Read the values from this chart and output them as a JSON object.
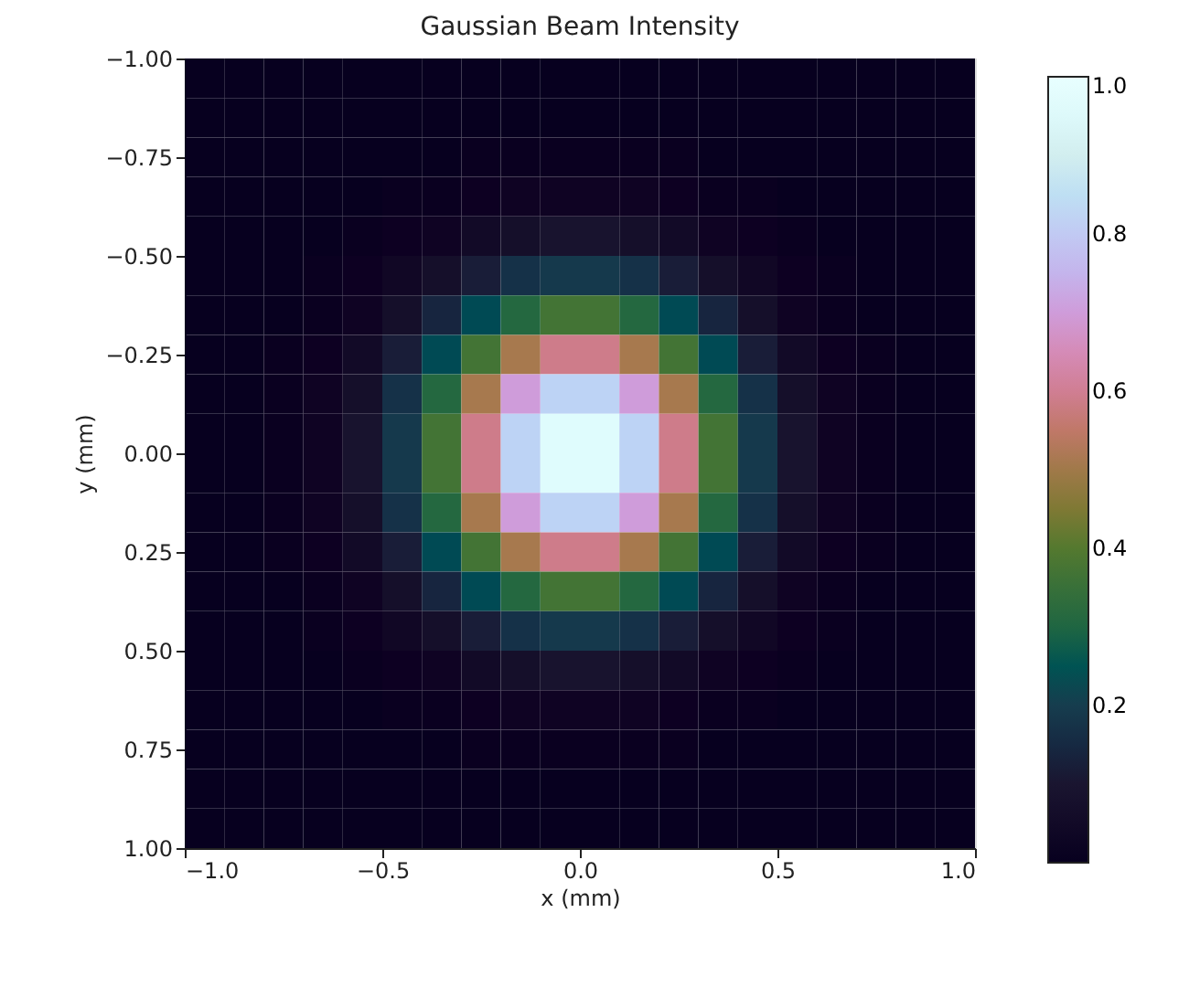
{
  "chart_data": {
    "type": "heatmap",
    "title": "Gaussian Beam Intensity",
    "xlabel": "x (mm)",
    "ylabel": "y (mm)",
    "x": [
      -0.95,
      -0.85,
      -0.75,
      -0.65,
      -0.55,
      -0.45,
      -0.35,
      -0.25,
      -0.15,
      -0.05,
      0.05,
      0.15,
      0.25,
      0.35,
      0.45,
      0.55,
      0.65,
      0.75,
      0.85,
      0.95
    ],
    "y": [
      -0.95,
      -0.85,
      -0.75,
      -0.65,
      -0.55,
      -0.45,
      -0.35,
      -0.25,
      -0.15,
      -0.05,
      0.05,
      0.15,
      0.25,
      0.35,
      0.45,
      0.55,
      0.65,
      0.75,
      0.85,
      0.95
    ],
    "xlim": [
      -1,
      1
    ],
    "ylim": [
      1,
      -1
    ],
    "xticks": [
      {
        "value": -1,
        "label": "−1.0"
      },
      {
        "value": -0.5,
        "label": "−0.5"
      },
      {
        "value": 0,
        "label": "0.0"
      },
      {
        "value": 0.5,
        "label": "0.5"
      },
      {
        "value": 1,
        "label": "1.0"
      }
    ],
    "yticks": [
      {
        "value": -1,
        "label": "−1.00"
      },
      {
        "value": -0.75,
        "label": "−0.75"
      },
      {
        "value": -0.5,
        "label": "−0.50"
      },
      {
        "value": -0.25,
        "label": "−0.25"
      },
      {
        "value": 0,
        "label": "0.00"
      },
      {
        "value": 0.25,
        "label": "0.25"
      },
      {
        "value": 0.5,
        "label": "0.50"
      },
      {
        "value": 0.75,
        "label": "0.75"
      },
      {
        "value": 1,
        "label": "1.00"
      }
    ],
    "clim": [
      0,
      1
    ],
    "cticks": [
      0.2,
      0.4,
      0.6,
      0.8,
      {
        "value": 1,
        "label": "1.0"
      }
    ],
    "grid": false,
    "cells": [
      [
        0,
        0,
        0,
        0,
        0,
        0,
        0,
        0,
        0,
        0,
        0,
        0,
        0,
        0,
        0,
        0,
        0,
        0,
        0,
        0
      ],
      [
        0,
        0,
        0,
        0,
        0,
        0,
        0,
        0,
        0,
        0,
        0,
        0,
        0,
        0,
        0,
        0,
        0,
        0,
        0,
        0
      ],
      [
        0,
        0,
        0,
        0,
        0,
        0,
        0,
        0.01,
        0.01,
        0.01,
        0.01,
        0.01,
        0.01,
        0,
        0,
        0,
        0,
        0,
        0,
        0
      ],
      [
        0,
        0,
        0,
        0,
        0,
        0.01,
        0.01,
        0.02,
        0.03,
        0.03,
        0.03,
        0.03,
        0.02,
        0.01,
        0.01,
        0,
        0,
        0,
        0,
        0
      ],
      [
        0,
        0,
        0,
        0,
        0.01,
        0.02,
        0.03,
        0.05,
        0.07,
        0.09,
        0.09,
        0.07,
        0.05,
        0.03,
        0.02,
        0.01,
        0,
        0,
        0,
        0
      ],
      [
        0,
        0,
        0,
        0.01,
        0.02,
        0.04,
        0.07,
        0.12,
        0.17,
        0.19,
        0.19,
        0.17,
        0.12,
        0.07,
        0.04,
        0.02,
        0.01,
        0,
        0,
        0
      ],
      [
        0,
        0,
        0,
        0.01,
        0.03,
        0.07,
        0.14,
        0.23,
        0.31,
        0.37,
        0.37,
        0.31,
        0.23,
        0.14,
        0.07,
        0.03,
        0.01,
        0,
        0,
        0
      ],
      [
        0,
        0,
        0.01,
        0.02,
        0.05,
        0.12,
        0.23,
        0.37,
        0.51,
        0.59,
        0.59,
        0.51,
        0.37,
        0.23,
        0.12,
        0.05,
        0.02,
        0.01,
        0,
        0
      ],
      [
        0,
        0,
        0.01,
        0.03,
        0.07,
        0.17,
        0.31,
        0.51,
        0.7,
        0.82,
        0.82,
        0.7,
        0.51,
        0.31,
        0.17,
        0.07,
        0.03,
        0.01,
        0,
        0
      ],
      [
        0,
        0,
        0.01,
        0.03,
        0.09,
        0.19,
        0.37,
        0.59,
        0.82,
        0.96,
        0.96,
        0.82,
        0.59,
        0.37,
        0.19,
        0.09,
        0.03,
        0.01,
        0,
        0
      ],
      [
        0,
        0,
        0.01,
        0.03,
        0.09,
        0.19,
        0.37,
        0.59,
        0.82,
        0.96,
        0.96,
        0.82,
        0.59,
        0.37,
        0.19,
        0.09,
        0.03,
        0.01,
        0,
        0
      ],
      [
        0,
        0,
        0.01,
        0.03,
        0.07,
        0.17,
        0.31,
        0.51,
        0.7,
        0.82,
        0.82,
        0.7,
        0.51,
        0.31,
        0.17,
        0.07,
        0.03,
        0.01,
        0,
        0
      ],
      [
        0,
        0,
        0.01,
        0.02,
        0.05,
        0.12,
        0.23,
        0.37,
        0.51,
        0.59,
        0.59,
        0.51,
        0.37,
        0.23,
        0.12,
        0.05,
        0.02,
        0.01,
        0,
        0
      ],
      [
        0,
        0,
        0,
        0.01,
        0.03,
        0.07,
        0.14,
        0.23,
        0.31,
        0.37,
        0.37,
        0.31,
        0.23,
        0.14,
        0.07,
        0.03,
        0.01,
        0,
        0,
        0
      ],
      [
        0,
        0,
        0,
        0.01,
        0.02,
        0.04,
        0.07,
        0.12,
        0.17,
        0.19,
        0.19,
        0.17,
        0.12,
        0.07,
        0.04,
        0.02,
        0.01,
        0,
        0,
        0
      ],
      [
        0,
        0,
        0,
        0,
        0.01,
        0.02,
        0.03,
        0.05,
        0.07,
        0.09,
        0.09,
        0.07,
        0.05,
        0.03,
        0.02,
        0.01,
        0,
        0,
        0,
        0
      ],
      [
        0,
        0,
        0,
        0,
        0,
        0.01,
        0.01,
        0.02,
        0.03,
        0.03,
        0.03,
        0.03,
        0.02,
        0.01,
        0.01,
        0,
        0,
        0,
        0,
        0
      ],
      [
        0,
        0,
        0,
        0,
        0,
        0,
        0,
        0.01,
        0.01,
        0.01,
        0.01,
        0.01,
        0.01,
        0,
        0,
        0,
        0,
        0,
        0,
        0
      ],
      [
        0,
        0,
        0,
        0,
        0,
        0,
        0,
        0,
        0,
        0,
        0,
        0,
        0,
        0,
        0,
        0,
        0,
        0,
        0,
        0
      ],
      [
        0,
        0,
        0,
        0,
        0,
        0,
        0,
        0,
        0,
        0,
        0,
        0,
        0,
        0,
        0,
        0,
        0,
        0,
        0,
        0
      ]
    ]
  }
}
